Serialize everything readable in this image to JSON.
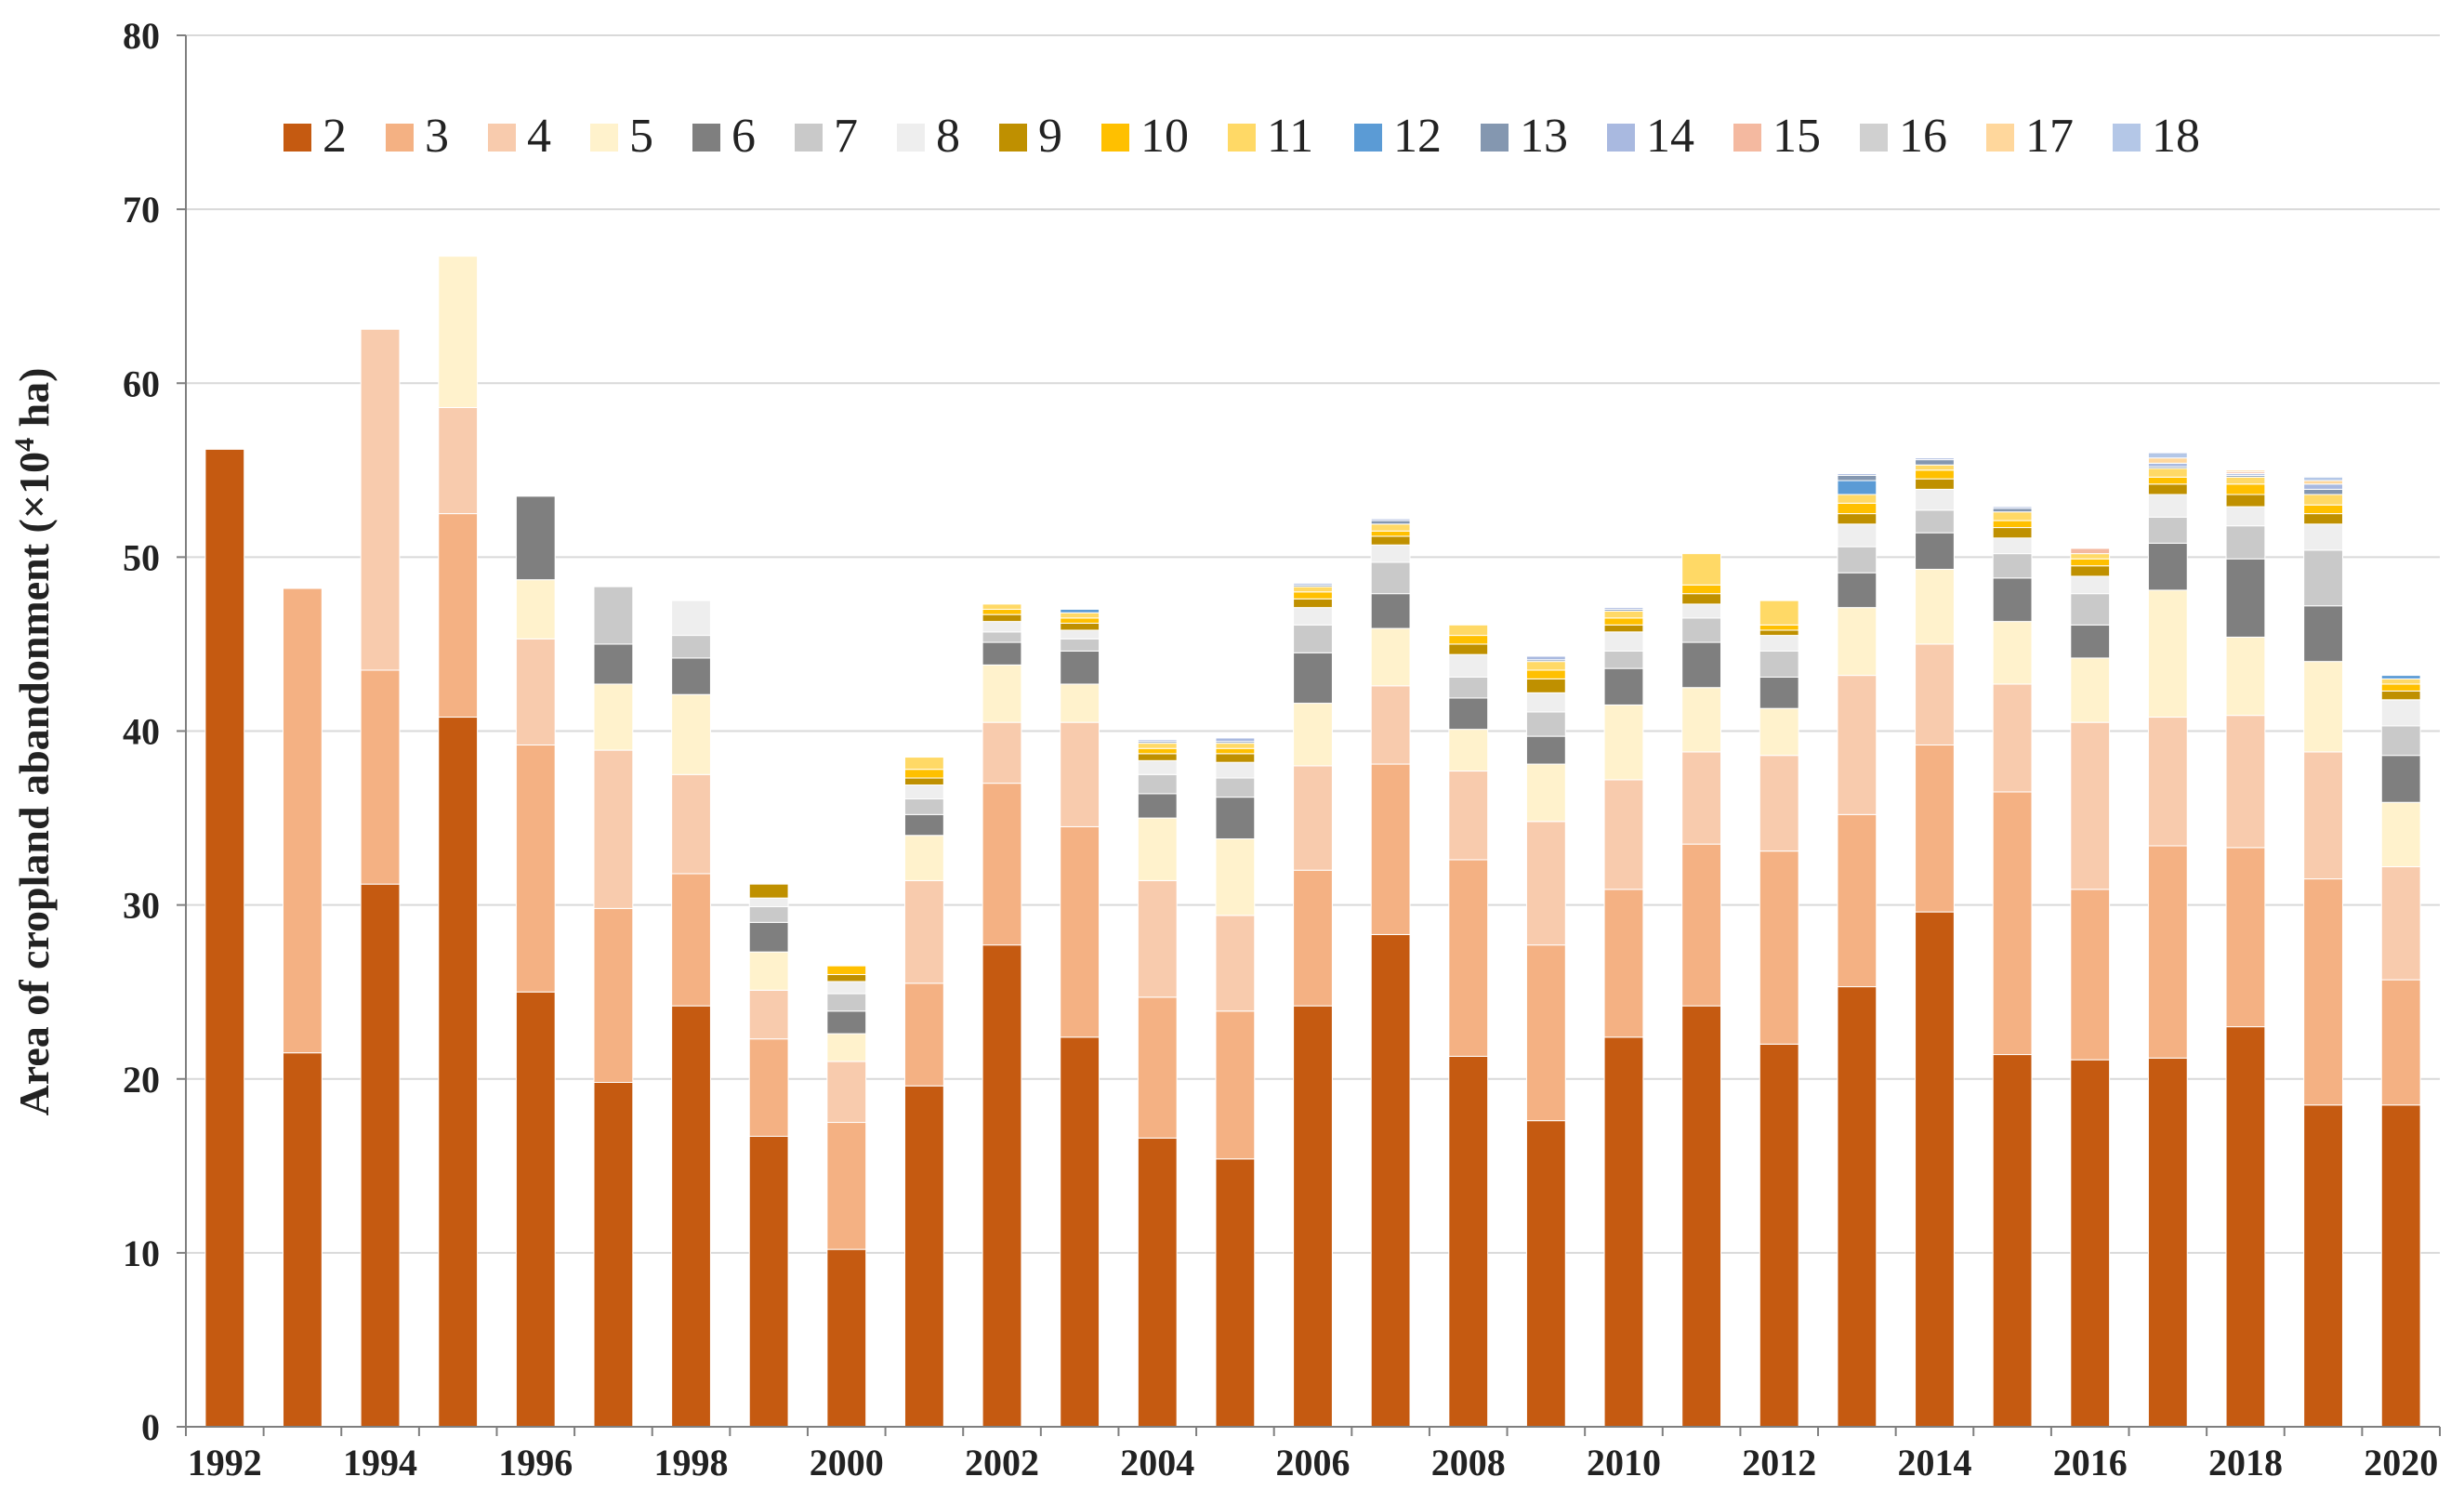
{
  "chart_data": {
    "type": "bar",
    "stacked": true,
    "title": "",
    "xlabel": "",
    "ylabel_main": "Area of cropland abandonment (×10",
    "ylabel_sup": "4",
    "ylabel_end": " ha)",
    "ylim": [
      0,
      80
    ],
    "yticks": [
      "0",
      "10",
      "20",
      "30",
      "40",
      "50",
      "60",
      "70",
      "80"
    ],
    "grid": true,
    "legend_position": "top",
    "categories": [
      "1992",
      "1993",
      "1994",
      "1995",
      "1996",
      "1997",
      "1998",
      "1999",
      "2000",
      "2001",
      "2002",
      "2003",
      "2004",
      "2005",
      "2006",
      "2007",
      "2008",
      "2009",
      "2010",
      "2011",
      "2012",
      "2013",
      "2014",
      "2015",
      "2016",
      "2017",
      "2018",
      "2019",
      "2020"
    ],
    "x_tick_labels": [
      "1992",
      "1994",
      "1996",
      "1998",
      "2000",
      "2002",
      "2004",
      "2006",
      "2008",
      "2010",
      "2012",
      "2014",
      "2016",
      "2018",
      "2020"
    ],
    "series": [
      {
        "name": "2",
        "color": "#c55a11",
        "values": [
          56.2,
          21.5,
          31.2,
          40.8,
          25.0,
          19.8,
          24.2,
          16.7,
          10.2,
          19.6,
          27.7,
          22.4,
          16.6,
          15.4,
          24.2,
          28.3,
          21.3,
          17.6,
          22.4,
          24.2,
          22.0,
          25.3,
          29.6,
          21.4,
          21.1,
          21.2,
          23.0,
          18.5,
          18.5
        ]
      },
      {
        "name": "3",
        "color": "#f4b183",
        "values": [
          0,
          26.7,
          12.3,
          11.7,
          14.2,
          10.0,
          7.6,
          5.6,
          7.3,
          5.9,
          9.3,
          12.1,
          8.1,
          8.5,
          7.8,
          9.8,
          11.3,
          10.1,
          8.5,
          9.3,
          11.1,
          9.9,
          9.6,
          15.1,
          9.8,
          12.2,
          10.3,
          13.0,
          7.2
        ]
      },
      {
        "name": "4",
        "color": "#f8cbad",
        "values": [
          0,
          0,
          19.6,
          6.1,
          6.1,
          9.1,
          5.7,
          2.8,
          3.5,
          5.9,
          3.5,
          6.0,
          6.7,
          5.5,
          6.0,
          4.5,
          5.1,
          7.1,
          6.3,
          5.3,
          5.5,
          8.0,
          5.8,
          6.2,
          9.6,
          7.4,
          7.6,
          7.3,
          6.5
        ]
      },
      {
        "name": "5",
        "color": "#fff2cc",
        "values": [
          0,
          0,
          0,
          8.7,
          3.4,
          3.8,
          4.6,
          2.2,
          1.6,
          2.6,
          3.3,
          2.2,
          3.6,
          4.4,
          3.6,
          3.3,
          2.4,
          3.3,
          4.3,
          3.7,
          2.7,
          3.9,
          4.3,
          3.6,
          3.7,
          7.3,
          4.5,
          5.2,
          3.7
        ]
      },
      {
        "name": "6",
        "color": "#7f7f7f",
        "values": [
          0,
          0,
          0,
          0,
          4.8,
          2.3,
          2.1,
          1.7,
          1.3,
          1.2,
          1.3,
          1.9,
          1.4,
          2.4,
          2.9,
          2.0,
          1.8,
          1.6,
          2.1,
          2.6,
          1.8,
          2.0,
          2.1,
          2.5,
          1.9,
          2.7,
          4.5,
          3.2,
          2.7
        ]
      },
      {
        "name": "7",
        "color": "#c9c9c9",
        "values": [
          0,
          0,
          0,
          0,
          0,
          3.3,
          1.3,
          0.9,
          1.0,
          0.9,
          0.6,
          0.7,
          1.1,
          1.1,
          1.6,
          1.8,
          1.2,
          1.4,
          1.0,
          1.4,
          1.5,
          1.5,
          1.3,
          1.4,
          1.8,
          1.5,
          1.9,
          3.2,
          1.7
        ]
      },
      {
        "name": "8",
        "color": "#eeeeee",
        "values": [
          0,
          0,
          0,
          0,
          0,
          0,
          2.0,
          0.5,
          0.7,
          0.8,
          0.6,
          0.5,
          0.8,
          0.9,
          1.0,
          1.0,
          1.3,
          1.1,
          1.1,
          0.8,
          0.9,
          1.3,
          1.2,
          0.9,
          1.0,
          1.3,
          1.1,
          1.5,
          1.5
        ]
      },
      {
        "name": "9",
        "color": "#bf9000",
        "values": [
          0,
          0,
          0,
          0,
          0,
          0,
          0,
          0.8,
          0.4,
          0.4,
          0.4,
          0.4,
          0.4,
          0.5,
          0.5,
          0.5,
          0.6,
          0.8,
          0.4,
          0.6,
          0.3,
          0.6,
          0.6,
          0.6,
          0.6,
          0.6,
          0.7,
          0.6,
          0.5
        ]
      },
      {
        "name": "10",
        "color": "#ffc000",
        "values": [
          0,
          0,
          0,
          0,
          0,
          0,
          0,
          0,
          0.5,
          0.5,
          0.3,
          0.3,
          0.3,
          0.3,
          0.4,
          0.3,
          0.5,
          0.5,
          0.4,
          0.5,
          0.3,
          0.6,
          0.5,
          0.4,
          0.4,
          0.4,
          0.6,
          0.5,
          0.4
        ]
      },
      {
        "name": "11",
        "color": "#ffd966",
        "values": [
          0,
          0,
          0,
          0,
          0,
          0,
          0,
          0,
          0,
          0.7,
          0.3,
          0.3,
          0.3,
          0.3,
          0.3,
          0.4,
          0.6,
          0.5,
          0.4,
          1.8,
          1.4,
          0.5,
          0.3,
          0.5,
          0.3,
          0.5,
          0.4,
          0.6,
          0.3
        ]
      },
      {
        "name": "12",
        "color": "#5b9bd5",
        "values": [
          0,
          0,
          0,
          0,
          0,
          0,
          0,
          0,
          0,
          0,
          0,
          0.2,
          0,
          0,
          0,
          0,
          0,
          0,
          0,
          0,
          0,
          0.8,
          0,
          0,
          0,
          0,
          0,
          0,
          0.2
        ]
      },
      {
        "name": "13",
        "color": "#8497b0",
        "values": [
          0,
          0,
          0,
          0,
          0,
          0,
          0,
          0,
          0,
          0,
          0,
          0,
          0.1,
          0.1,
          0.1,
          0.2,
          0,
          0.1,
          0.1,
          0,
          0,
          0.3,
          0.3,
          0.2,
          0,
          0.1,
          0.1,
          0.3,
          0
        ]
      },
      {
        "name": "14",
        "color": "#a9b9e0",
        "values": [
          0,
          0,
          0,
          0,
          0,
          0,
          0,
          0,
          0,
          0,
          0,
          0,
          0.1,
          0.2,
          0.1,
          0.1,
          0,
          0.2,
          0.1,
          0,
          0,
          0.1,
          0.1,
          0.1,
          0,
          0.2,
          0.1,
          0.3,
          0
        ]
      },
      {
        "name": "15",
        "color": "#f4b9a0",
        "values": [
          0,
          0,
          0,
          0,
          0,
          0,
          0,
          0,
          0,
          0,
          0,
          0,
          0,
          0,
          0,
          0,
          0,
          0,
          0,
          0,
          0,
          0,
          0,
          0,
          0.3,
          0,
          0.1,
          0,
          0
        ]
      },
      {
        "name": "16",
        "color": "#d0d0d0",
        "values": [
          0,
          0,
          0,
          0,
          0,
          0,
          0,
          0,
          0,
          0,
          0,
          0,
          0,
          0,
          0,
          0,
          0,
          0,
          0,
          0,
          0,
          0,
          0,
          0,
          0,
          0,
          0,
          0,
          0
        ]
      },
      {
        "name": "17",
        "color": "#ffd79c",
        "values": [
          0,
          0,
          0,
          0,
          0,
          0,
          0,
          0,
          0,
          0,
          0,
          0,
          0,
          0,
          0,
          0,
          0,
          0,
          0,
          0,
          0,
          0,
          0,
          0,
          0,
          0.3,
          0.1,
          0.2,
          0
        ]
      },
      {
        "name": "18",
        "color": "#b4c7e7",
        "values": [
          0,
          0,
          0,
          0,
          0,
          0,
          0,
          0,
          0,
          0,
          0,
          0,
          0,
          0,
          0,
          0,
          0,
          0,
          0,
          0,
          0,
          0,
          0,
          0,
          0,
          0.3,
          0,
          0.2,
          0
        ]
      }
    ]
  }
}
